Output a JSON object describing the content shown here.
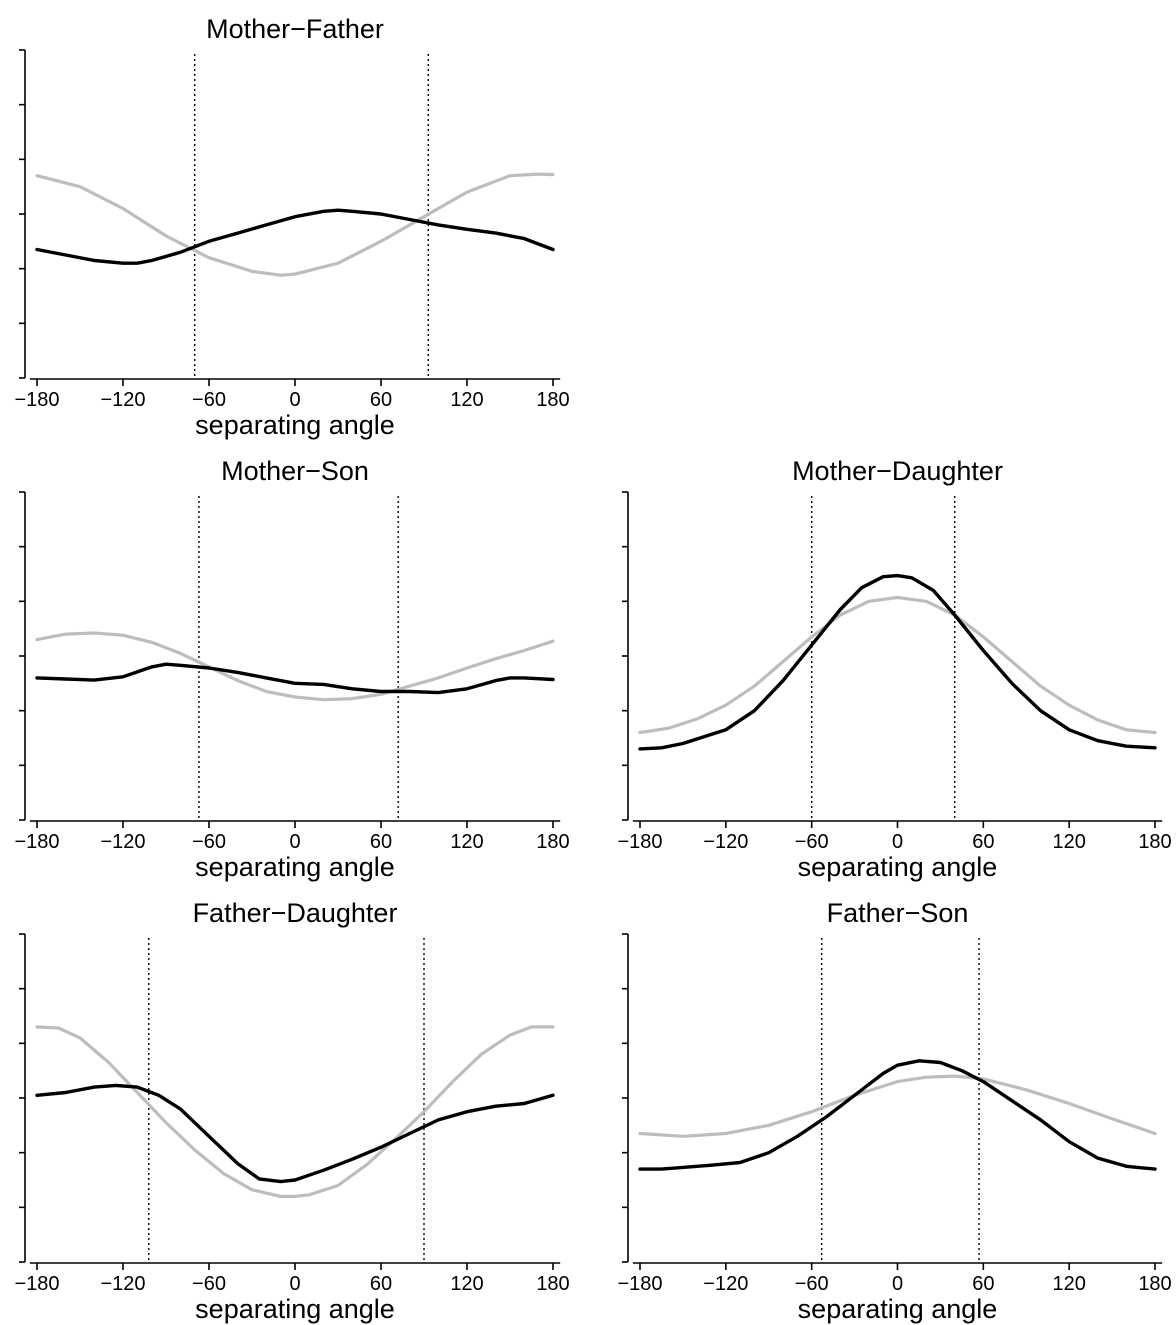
{
  "figure": {
    "colors": {
      "observed": "#000000",
      "fitted": "#bdbdbd",
      "axis": "#000000"
    }
  },
  "chart_data": [
    {
      "type": "line",
      "title": "Mother−Father",
      "xlabel": "separating angle",
      "ylabel": "",
      "xlim": [
        -185,
        185
      ],
      "ylim": [
        0,
        6
      ],
      "x_ticks": [
        -180,
        -120,
        -60,
        0,
        60,
        120,
        180
      ],
      "x_tick_labels": [
        "−180",
        "−120",
        "−60",
        "0",
        "60",
        "120",
        "180"
      ],
      "y_ticks": [
        0,
        1,
        2,
        3,
        4,
        5,
        6
      ],
      "vlines": [
        -70,
        93
      ],
      "grid": false,
      "legend": "none",
      "series": [
        {
          "color": "#bdbdbd",
          "x": [
            -180,
            -150,
            -120,
            -90,
            -60,
            -30,
            -10,
            0,
            30,
            60,
            90,
            120,
            150,
            170,
            180
          ],
          "y": [
            3.7,
            3.5,
            3.1,
            2.6,
            2.2,
            1.95,
            1.88,
            1.9,
            2.1,
            2.5,
            2.95,
            3.4,
            3.7,
            3.73,
            3.72
          ]
        },
        {
          "color": "#000000",
          "x": [
            -180,
            -160,
            -140,
            -120,
            -110,
            -100,
            -80,
            -60,
            -40,
            -20,
            0,
            20,
            30,
            40,
            60,
            80,
            100,
            120,
            140,
            160,
            180
          ],
          "y": [
            2.35,
            2.25,
            2.15,
            2.1,
            2.1,
            2.15,
            2.3,
            2.5,
            2.65,
            2.8,
            2.95,
            3.05,
            3.07,
            3.05,
            3.0,
            2.9,
            2.8,
            2.72,
            2.65,
            2.55,
            2.35
          ]
        }
      ]
    },
    {
      "type": "line",
      "title": "Mother−Son",
      "xlabel": "separating angle",
      "ylabel": "",
      "xlim": [
        -185,
        185
      ],
      "ylim": [
        0,
        6
      ],
      "x_ticks": [
        -180,
        -120,
        -60,
        0,
        60,
        120,
        180
      ],
      "x_tick_labels": [
        "−180",
        "−120",
        "−60",
        "0",
        "60",
        "120",
        "180"
      ],
      "y_ticks": [
        0,
        1,
        2,
        3,
        4,
        5,
        6
      ],
      "vlines": [
        -67,
        72
      ],
      "grid": false,
      "legend": "none",
      "series": [
        {
          "color": "#bdbdbd",
          "x": [
            -180,
            -160,
            -140,
            -120,
            -100,
            -80,
            -60,
            -40,
            -20,
            0,
            20,
            40,
            60,
            80,
            100,
            120,
            140,
            160,
            180
          ],
          "y": [
            3.3,
            3.4,
            3.42,
            3.38,
            3.25,
            3.05,
            2.8,
            2.55,
            2.35,
            2.25,
            2.2,
            2.22,
            2.3,
            2.45,
            2.6,
            2.78,
            2.95,
            3.1,
            3.27
          ]
        },
        {
          "color": "#000000",
          "x": [
            -180,
            -160,
            -140,
            -120,
            -100,
            -90,
            -80,
            -60,
            -40,
            -20,
            0,
            20,
            40,
            60,
            80,
            100,
            120,
            140,
            150,
            160,
            180
          ],
          "y": [
            2.6,
            2.58,
            2.56,
            2.62,
            2.8,
            2.85,
            2.83,
            2.78,
            2.7,
            2.6,
            2.5,
            2.48,
            2.4,
            2.35,
            2.35,
            2.33,
            2.4,
            2.55,
            2.6,
            2.6,
            2.57
          ]
        }
      ]
    },
    {
      "type": "line",
      "title": "Mother−Daughter",
      "xlabel": "separating angle",
      "ylabel": "",
      "xlim": [
        -185,
        185
      ],
      "ylim": [
        0,
        6
      ],
      "x_ticks": [
        -180,
        -120,
        -60,
        0,
        60,
        120,
        180
      ],
      "x_tick_labels": [
        "−180",
        "−120",
        "−60",
        "0",
        "60",
        "120",
        "180"
      ],
      "y_ticks": [
        0,
        1,
        2,
        3,
        4,
        5,
        6
      ],
      "vlines": [
        -60,
        40
      ],
      "grid": false,
      "legend": "none",
      "series": [
        {
          "color": "#bdbdbd",
          "x": [
            -180,
            -160,
            -140,
            -120,
            -100,
            -80,
            -60,
            -40,
            -20,
            0,
            20,
            40,
            60,
            80,
            100,
            120,
            140,
            160,
            180
          ],
          "y": [
            1.6,
            1.68,
            1.85,
            2.1,
            2.45,
            2.9,
            3.35,
            3.75,
            4.0,
            4.07,
            4.0,
            3.75,
            3.35,
            2.9,
            2.45,
            2.1,
            1.83,
            1.65,
            1.6
          ]
        },
        {
          "color": "#000000",
          "x": [
            -180,
            -165,
            -150,
            -120,
            -100,
            -80,
            -60,
            -40,
            -25,
            -10,
            0,
            10,
            25,
            40,
            60,
            80,
            100,
            120,
            140,
            160,
            180
          ],
          "y": [
            1.3,
            1.32,
            1.4,
            1.65,
            2.0,
            2.55,
            3.2,
            3.85,
            4.25,
            4.45,
            4.47,
            4.43,
            4.2,
            3.75,
            3.1,
            2.5,
            2.0,
            1.65,
            1.45,
            1.35,
            1.32
          ]
        }
      ]
    },
    {
      "type": "line",
      "title": "Father−Daughter",
      "xlabel": "separating angle",
      "ylabel": "",
      "xlim": [
        -185,
        185
      ],
      "ylim": [
        0,
        6
      ],
      "x_ticks": [
        -180,
        -120,
        -60,
        0,
        60,
        120,
        180
      ],
      "x_tick_labels": [
        "−180",
        "−120",
        "−60",
        "0",
        "60",
        "120",
        "180"
      ],
      "y_ticks": [
        0,
        1,
        2,
        3,
        4,
        5,
        6
      ],
      "vlines": [
        -102,
        90
      ],
      "grid": false,
      "legend": "none",
      "series": [
        {
          "color": "#bdbdbd",
          "x": [
            -180,
            -165,
            -150,
            -130,
            -110,
            -90,
            -70,
            -50,
            -30,
            -10,
            0,
            10,
            30,
            50,
            70,
            90,
            110,
            130,
            150,
            165,
            180
          ],
          "y": [
            4.3,
            4.28,
            4.1,
            3.65,
            3.1,
            2.55,
            2.05,
            1.62,
            1.32,
            1.2,
            1.2,
            1.23,
            1.4,
            1.78,
            2.25,
            2.75,
            3.3,
            3.8,
            4.15,
            4.3,
            4.3
          ]
        },
        {
          "color": "#000000",
          "x": [
            -180,
            -160,
            -140,
            -125,
            -110,
            -95,
            -80,
            -60,
            -40,
            -25,
            -10,
            0,
            20,
            40,
            60,
            80,
            100,
            120,
            140,
            160,
            180
          ],
          "y": [
            3.05,
            3.1,
            3.2,
            3.23,
            3.2,
            3.05,
            2.8,
            2.3,
            1.8,
            1.52,
            1.47,
            1.5,
            1.68,
            1.88,
            2.1,
            2.35,
            2.6,
            2.75,
            2.85,
            2.9,
            3.05
          ]
        }
      ]
    },
    {
      "type": "line",
      "title": "Father−Son",
      "xlabel": "separating angle",
      "ylabel": "",
      "xlim": [
        -185,
        185
      ],
      "ylim": [
        0,
        6
      ],
      "x_ticks": [
        -180,
        -120,
        -60,
        0,
        60,
        120,
        180
      ],
      "x_tick_labels": [
        "−180",
        "−120",
        "−60",
        "0",
        "60",
        "120",
        "180"
      ],
      "y_ticks": [
        0,
        1,
        2,
        3,
        4,
        5,
        6
      ],
      "vlines": [
        -53,
        57
      ],
      "grid": false,
      "legend": "none",
      "series": [
        {
          "color": "#bdbdbd",
          "x": [
            -180,
            -150,
            -120,
            -90,
            -60,
            -30,
            0,
            20,
            40,
            60,
            90,
            120,
            150,
            180
          ],
          "y": [
            2.35,
            2.3,
            2.35,
            2.5,
            2.75,
            3.05,
            3.3,
            3.38,
            3.4,
            3.35,
            3.15,
            2.9,
            2.62,
            2.35
          ]
        },
        {
          "color": "#000000",
          "x": [
            -180,
            -165,
            -150,
            -130,
            -110,
            -90,
            -70,
            -50,
            -30,
            -10,
            0,
            15,
            30,
            45,
            60,
            80,
            100,
            120,
            140,
            160,
            180
          ],
          "y": [
            1.7,
            1.7,
            1.73,
            1.77,
            1.82,
            2.0,
            2.3,
            2.65,
            3.05,
            3.45,
            3.6,
            3.68,
            3.65,
            3.5,
            3.3,
            2.95,
            2.6,
            2.2,
            1.9,
            1.75,
            1.7
          ]
        }
      ]
    }
  ]
}
